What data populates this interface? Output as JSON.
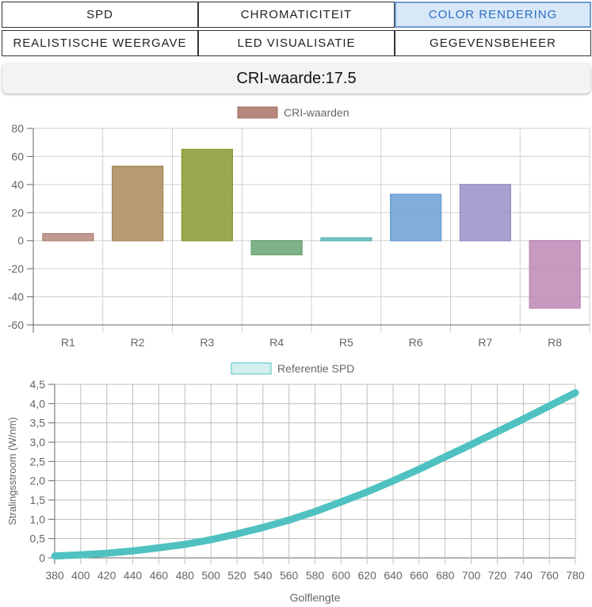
{
  "tabs": [
    {
      "label": "SPD",
      "active": false
    },
    {
      "label": "CHROMATICITEIT",
      "active": false
    },
    {
      "label": "COLOR RENDERING",
      "active": true
    },
    {
      "label": "REALISTISCHE WEERGAVE",
      "active": false
    },
    {
      "label": "LED VISUALISATIE",
      "active": false
    },
    {
      "label": "GEGEVENSBEHEER",
      "active": false
    }
  ],
  "cri_display": "CRI-waarde:17.5",
  "chart_data": [
    {
      "type": "bar",
      "legend": "CRI-waarden",
      "categories": [
        "R1",
        "R2",
        "R3",
        "R4",
        "R5",
        "R6",
        "R7",
        "R8"
      ],
      "values": [
        5,
        53,
        65,
        -10,
        2,
        33,
        40,
        -48
      ],
      "colors": [
        "#b5877c",
        "#a98a5b",
        "#8c9a33",
        "#6aa574",
        "#5fb8b7",
        "#6a9fd2",
        "#9a8fc8",
        "#be88b5"
      ],
      "ylim": [
        -60,
        80
      ],
      "yticks": [
        -60,
        -40,
        -20,
        0,
        20,
        40,
        60,
        80
      ],
      "grid": true
    },
    {
      "type": "line",
      "legend": "Referentie SPD",
      "xlabel": "Golflengte",
      "ylabel": "Stralingsstroom (W/nm)",
      "color": "#4fc1c1",
      "xlim": [
        380,
        780
      ],
      "ylim": [
        0,
        4.5
      ],
      "xticks": [
        380,
        400,
        420,
        440,
        460,
        480,
        500,
        520,
        540,
        560,
        580,
        600,
        620,
        640,
        660,
        680,
        700,
        720,
        740,
        760,
        780
      ],
      "yticks": [
        "0",
        "0,5",
        "1,0",
        "1,5",
        "2,0",
        "2,5",
        "3,0",
        "3,5",
        "4,0",
        "4,5"
      ],
      "x": [
        380,
        400,
        420,
        440,
        460,
        480,
        500,
        520,
        540,
        560,
        580,
        600,
        620,
        640,
        660,
        680,
        700,
        720,
        740,
        760,
        780
      ],
      "y": [
        0.05,
        0.08,
        0.12,
        0.18,
        0.26,
        0.35,
        0.47,
        0.62,
        0.79,
        0.98,
        1.2,
        1.45,
        1.71,
        2.0,
        2.3,
        2.62,
        2.94,
        3.27,
        3.6,
        3.94,
        4.28
      ],
      "grid": true
    }
  ]
}
